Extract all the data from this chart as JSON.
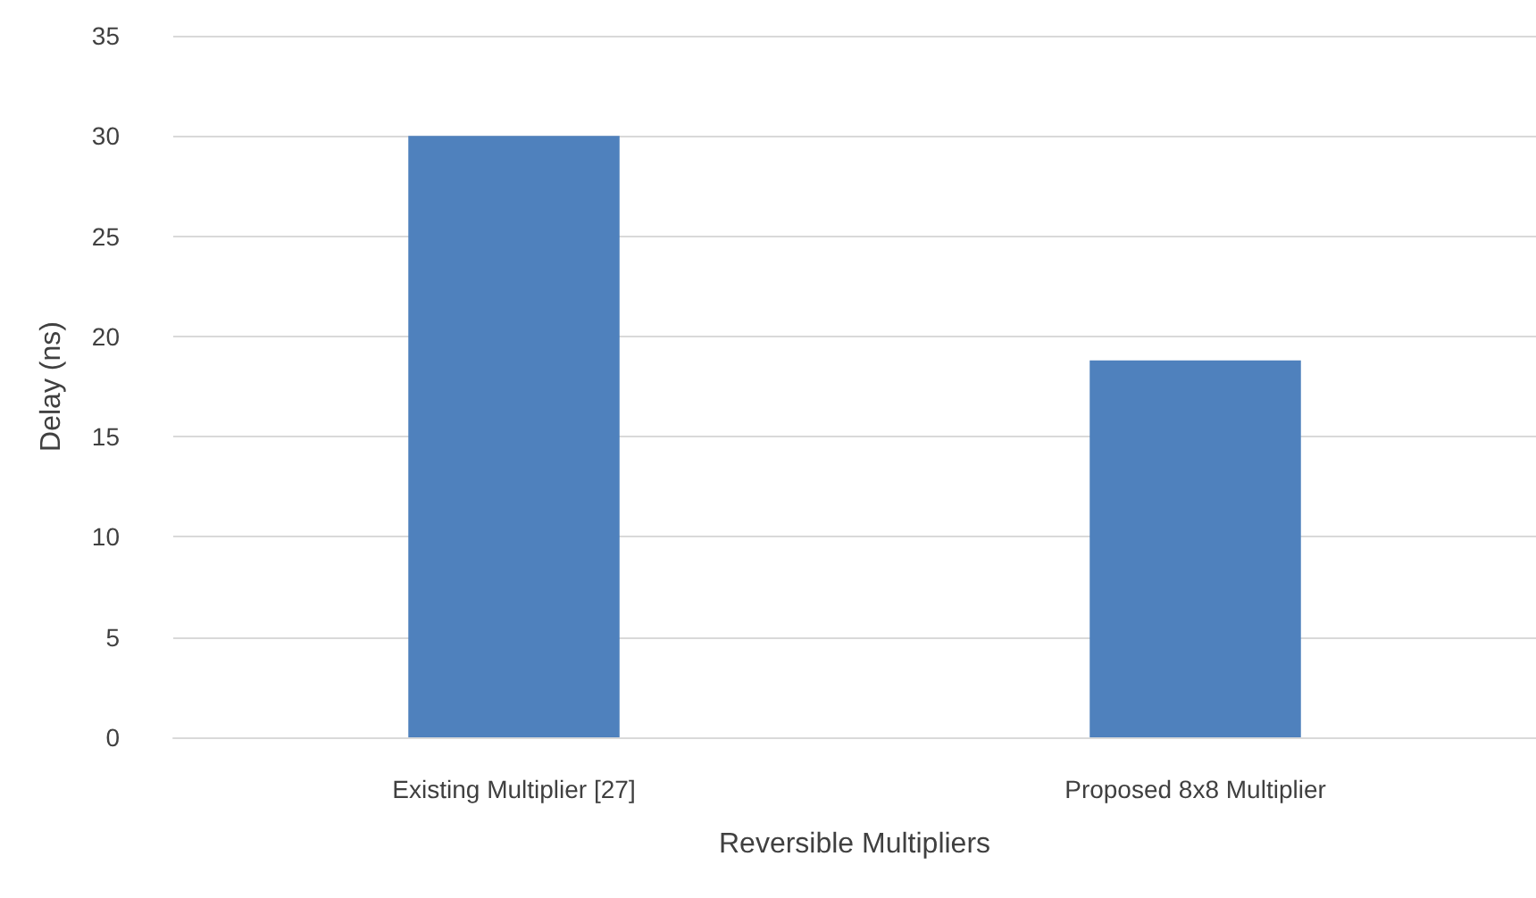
{
  "chart_data": {
    "type": "bar",
    "xlabel": "Reversible Multipliers",
    "ylabel": "Delay (ns)",
    "categories": [
      "Existing Multiplier [27]",
      "Proposed 8x8 Multiplier"
    ],
    "values": [
      30,
      18.8
    ],
    "color": "#4f81bd",
    "ylim": [
      0,
      35
    ],
    "yticks": [
      0,
      5,
      10,
      15,
      20,
      25,
      30,
      35
    ],
    "grid": "y"
  }
}
